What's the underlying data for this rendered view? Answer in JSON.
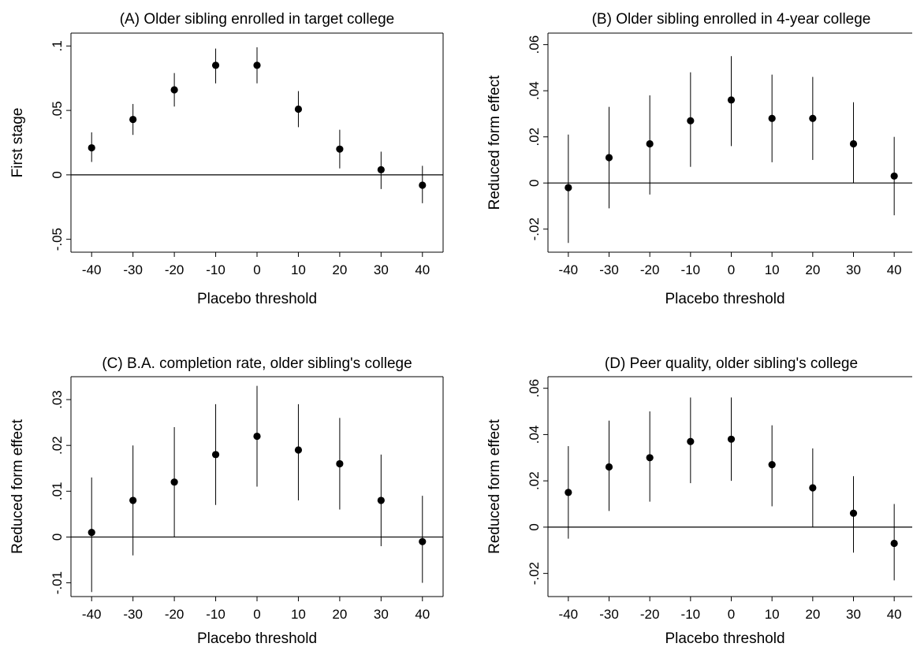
{
  "chart_data": [
    {
      "type": "scatter",
      "title": "(A) Older sibling enrolled in target college",
      "xlabel": "Placebo threshold",
      "ylabel": "First stage",
      "xlim": [
        -45,
        45
      ],
      "ylim": [
        -0.06,
        0.11
      ],
      "x_ticks": [
        -40,
        -30,
        -20,
        -10,
        0,
        10,
        20,
        30,
        40
      ],
      "x_tick_labels": [
        "-40",
        "-30",
        "-20",
        "-10",
        "0",
        "10",
        "20",
        "30",
        "40"
      ],
      "y_ticks": [
        -0.05,
        0,
        0.05,
        0.1
      ],
      "y_tick_labels": [
        "-.05",
        "0",
        ".05",
        ".1"
      ],
      "reference_line": 0,
      "x": [
        -40,
        -30,
        -20,
        -10,
        0,
        10,
        20,
        30,
        40
      ],
      "y": [
        0.021,
        0.043,
        0.066,
        0.085,
        0.085,
        0.051,
        0.02,
        0.004,
        -0.008
      ],
      "ci_low": [
        0.01,
        0.031,
        0.053,
        0.071,
        0.071,
        0.037,
        0.005,
        -0.011,
        -0.022
      ],
      "ci_high": [
        0.033,
        0.055,
        0.079,
        0.098,
        0.099,
        0.065,
        0.035,
        0.018,
        0.007
      ]
    },
    {
      "type": "scatter",
      "title": "(B) Older sibling enrolled in 4-year college",
      "xlabel": "Placebo threshold",
      "ylabel": "Reduced form effect",
      "xlim": [
        -45,
        45
      ],
      "ylim": [
        -0.03,
        0.065
      ],
      "x_ticks": [
        -40,
        -30,
        -20,
        -10,
        0,
        10,
        20,
        30,
        40
      ],
      "x_tick_labels": [
        "-40",
        "-30",
        "-20",
        "-10",
        "0",
        "10",
        "20",
        "30",
        "40"
      ],
      "y_ticks": [
        -0.02,
        0,
        0.02,
        0.04,
        0.06
      ],
      "y_tick_labels": [
        "-.02",
        "0",
        ".02",
        ".04",
        ".06"
      ],
      "reference_line": 0,
      "x": [
        -40,
        -30,
        -20,
        -10,
        0,
        10,
        20,
        30,
        40
      ],
      "y": [
        -0.002,
        0.011,
        0.017,
        0.027,
        0.036,
        0.028,
        0.028,
        0.017,
        0.003
      ],
      "ci_low": [
        -0.026,
        -0.011,
        -0.005,
        0.007,
        0.016,
        0.009,
        0.01,
        0.0,
        -0.014
      ],
      "ci_high": [
        0.021,
        0.033,
        0.038,
        0.048,
        0.055,
        0.047,
        0.046,
        0.035,
        0.02
      ]
    },
    {
      "type": "scatter",
      "title": "(C) B.A. completion rate, older sibling's college",
      "xlabel": "Placebo threshold",
      "ylabel": "Reduced form effect",
      "xlim": [
        -45,
        45
      ],
      "ylim": [
        -0.013,
        0.035
      ],
      "x_ticks": [
        -40,
        -30,
        -20,
        -10,
        0,
        10,
        20,
        30,
        40
      ],
      "x_tick_labels": [
        "-40",
        "-30",
        "-20",
        "-10",
        "0",
        "10",
        "20",
        "30",
        "40"
      ],
      "y_ticks": [
        -0.01,
        0,
        0.01,
        0.02,
        0.03
      ],
      "y_tick_labels": [
        "-.01",
        "0",
        ".01",
        ".02",
        ".03"
      ],
      "reference_line": 0,
      "x": [
        -40,
        -30,
        -20,
        -10,
        0,
        10,
        20,
        30,
        40
      ],
      "y": [
        0.001,
        0.008,
        0.012,
        0.018,
        0.022,
        0.019,
        0.016,
        0.008,
        -0.001
      ],
      "ci_low": [
        -0.012,
        -0.004,
        0.0,
        0.007,
        0.011,
        0.008,
        0.006,
        -0.002,
        -0.01
      ],
      "ci_high": [
        0.013,
        0.02,
        0.024,
        0.029,
        0.033,
        0.029,
        0.026,
        0.018,
        0.009
      ]
    },
    {
      "type": "scatter",
      "title": "(D) Peer quality, older sibling's college",
      "xlabel": "Placebo threshold",
      "ylabel": "Reduced form effect",
      "xlim": [
        -45,
        45
      ],
      "ylim": [
        -0.03,
        0.065
      ],
      "x_ticks": [
        -40,
        -30,
        -20,
        -10,
        0,
        10,
        20,
        30,
        40
      ],
      "x_tick_labels": [
        "-40",
        "-30",
        "-20",
        "-10",
        "0",
        "10",
        "20",
        "30",
        "40"
      ],
      "y_ticks": [
        -0.02,
        0,
        0.02,
        0.04,
        0.06
      ],
      "y_tick_labels": [
        "-.02",
        "0",
        ".02",
        ".04",
        ".06"
      ],
      "reference_line": 0,
      "x": [
        -40,
        -30,
        -20,
        -10,
        0,
        10,
        20,
        30,
        40
      ],
      "y": [
        0.015,
        0.026,
        0.03,
        0.037,
        0.038,
        0.027,
        0.017,
        0.006,
        -0.007
      ],
      "ci_low": [
        -0.005,
        0.007,
        0.011,
        0.019,
        0.02,
        0.009,
        0.0,
        -0.011,
        -0.023
      ],
      "ci_high": [
        0.035,
        0.046,
        0.05,
        0.056,
        0.056,
        0.044,
        0.034,
        0.022,
        0.01
      ]
    }
  ]
}
